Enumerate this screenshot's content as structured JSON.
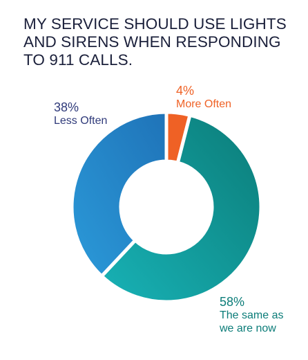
{
  "chart_data": {
    "type": "pie",
    "title_lines": [
      "MY SERVICE SHOULD USE LIGHTS",
      "AND SIRENS WHEN RESPONDING",
      "TO 911 CALLS."
    ],
    "slices": [
      {
        "label_lines": [
          "More Often"
        ],
        "value": 4,
        "display": "4%",
        "color": "#ef6125",
        "color_end": "#ef6125"
      },
      {
        "label_lines": [
          "The same as",
          "we are now"
        ],
        "value": 58,
        "display": "58%",
        "color": "#0b7c78",
        "color_end": "#18b2b6"
      },
      {
        "label_lines": [
          "Less Often"
        ],
        "value": 38,
        "display": "38%",
        "color": "#2b9ad9",
        "color_end": "#1f73b8",
        "label_color": "#2f3a7a"
      }
    ],
    "start_angle_deg": 0,
    "direction": "clockwise",
    "donut": true
  }
}
